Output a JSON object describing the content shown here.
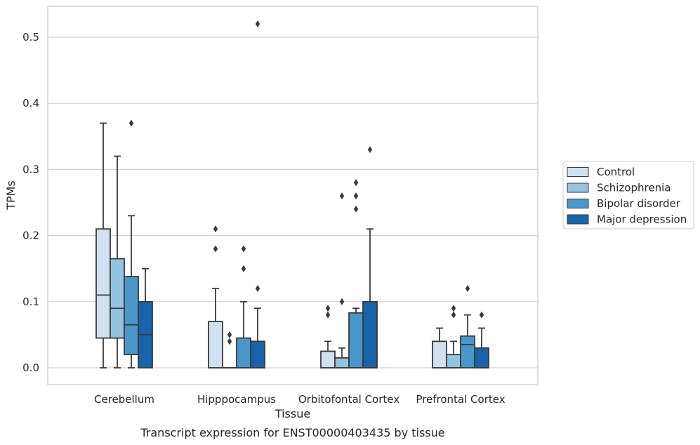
{
  "chart_data": {
    "type": "box",
    "caption": "Transcript expression for ENST00000403435 by tissue",
    "xlabel": "Tissue",
    "ylabel": "TPMs",
    "ylim": [
      -0.025,
      0.545
    ],
    "yticks": [
      0.0,
      0.1,
      0.2,
      0.3,
      0.4,
      0.5
    ],
    "ytick_labels": [
      "0.0",
      "0.1",
      "0.2",
      "0.3",
      "0.4",
      "0.5"
    ],
    "categories": [
      "Cerebellum",
      "Hipppocampus",
      "Orbitofontal Cortex",
      "Prefrontal Cortex"
    ],
    "grid": true,
    "legend_position": "right",
    "series": [
      {
        "name": "Control",
        "color": "#d0e1f2",
        "boxes": [
          {
            "whisker_low": 0.0,
            "q1": 0.045,
            "median": 0.11,
            "q3": 0.21,
            "whisker_high": 0.37,
            "outliers": []
          },
          {
            "whisker_low": 0.0,
            "q1": 0.0,
            "median": 0.0,
            "q3": 0.07,
            "whisker_high": 0.12,
            "outliers": [
              0.18,
              0.21
            ]
          },
          {
            "whisker_low": 0.0,
            "q1": 0.0,
            "median": 0.0,
            "q3": 0.025,
            "whisker_high": 0.04,
            "outliers": [
              0.08,
              0.09
            ]
          },
          {
            "whisker_low": 0.0,
            "q1": 0.0,
            "median": 0.0,
            "q3": 0.04,
            "whisker_high": 0.06,
            "outliers": []
          }
        ]
      },
      {
        "name": "Schizophrenia",
        "color": "#94c4df",
        "boxes": [
          {
            "whisker_low": 0.0,
            "q1": 0.045,
            "median": 0.09,
            "q3": 0.165,
            "whisker_high": 0.32,
            "outliers": []
          },
          {
            "whisker_low": 0.0,
            "q1": 0.0,
            "median": 0.0,
            "q3": 0.0,
            "whisker_high": 0.0,
            "outliers": [
              0.04,
              0.05
            ]
          },
          {
            "whisker_low": 0.0,
            "q1": 0.0,
            "median": 0.0,
            "q3": 0.015,
            "whisker_high": 0.03,
            "outliers": [
              0.1,
              0.26
            ]
          },
          {
            "whisker_low": 0.0,
            "q1": 0.0,
            "median": 0.0,
            "q3": 0.02,
            "whisker_high": 0.04,
            "outliers": [
              0.08,
              0.09
            ]
          }
        ]
      },
      {
        "name": "Bipolar disorder",
        "color": "#4a98c9",
        "boxes": [
          {
            "whisker_low": 0.0,
            "q1": 0.02,
            "median": 0.065,
            "q3": 0.138,
            "whisker_high": 0.23,
            "outliers": [
              0.37
            ]
          },
          {
            "whisker_low": 0.0,
            "q1": 0.0,
            "median": 0.0,
            "q3": 0.045,
            "whisker_high": 0.1,
            "outliers": [
              0.15,
              0.18
            ]
          },
          {
            "whisker_low": 0.0,
            "q1": 0.0,
            "median": 0.0,
            "q3": 0.083,
            "whisker_high": 0.09,
            "outliers": [
              0.24,
              0.26,
              0.28
            ]
          },
          {
            "whisker_low": 0.0,
            "q1": 0.0,
            "median": 0.035,
            "q3": 0.048,
            "whisker_high": 0.08,
            "outliers": [
              0.12
            ]
          }
        ]
      },
      {
        "name": "Major depression",
        "color": "#1764ab",
        "boxes": [
          {
            "whisker_low": 0.0,
            "q1": 0.0,
            "median": 0.05,
            "q3": 0.1,
            "whisker_high": 0.15,
            "outliers": []
          },
          {
            "whisker_low": 0.0,
            "q1": 0.0,
            "median": 0.0,
            "q3": 0.04,
            "whisker_high": 0.09,
            "outliers": [
              0.12,
              0.52
            ]
          },
          {
            "whisker_low": 0.0,
            "q1": 0.0,
            "median": 0.0,
            "q3": 0.1,
            "whisker_high": 0.21,
            "outliers": [
              0.33
            ]
          },
          {
            "whisker_low": 0.0,
            "q1": 0.0,
            "median": 0.0,
            "q3": 0.03,
            "whisker_high": 0.06,
            "outliers": [
              0.08
            ]
          }
        ]
      }
    ]
  }
}
